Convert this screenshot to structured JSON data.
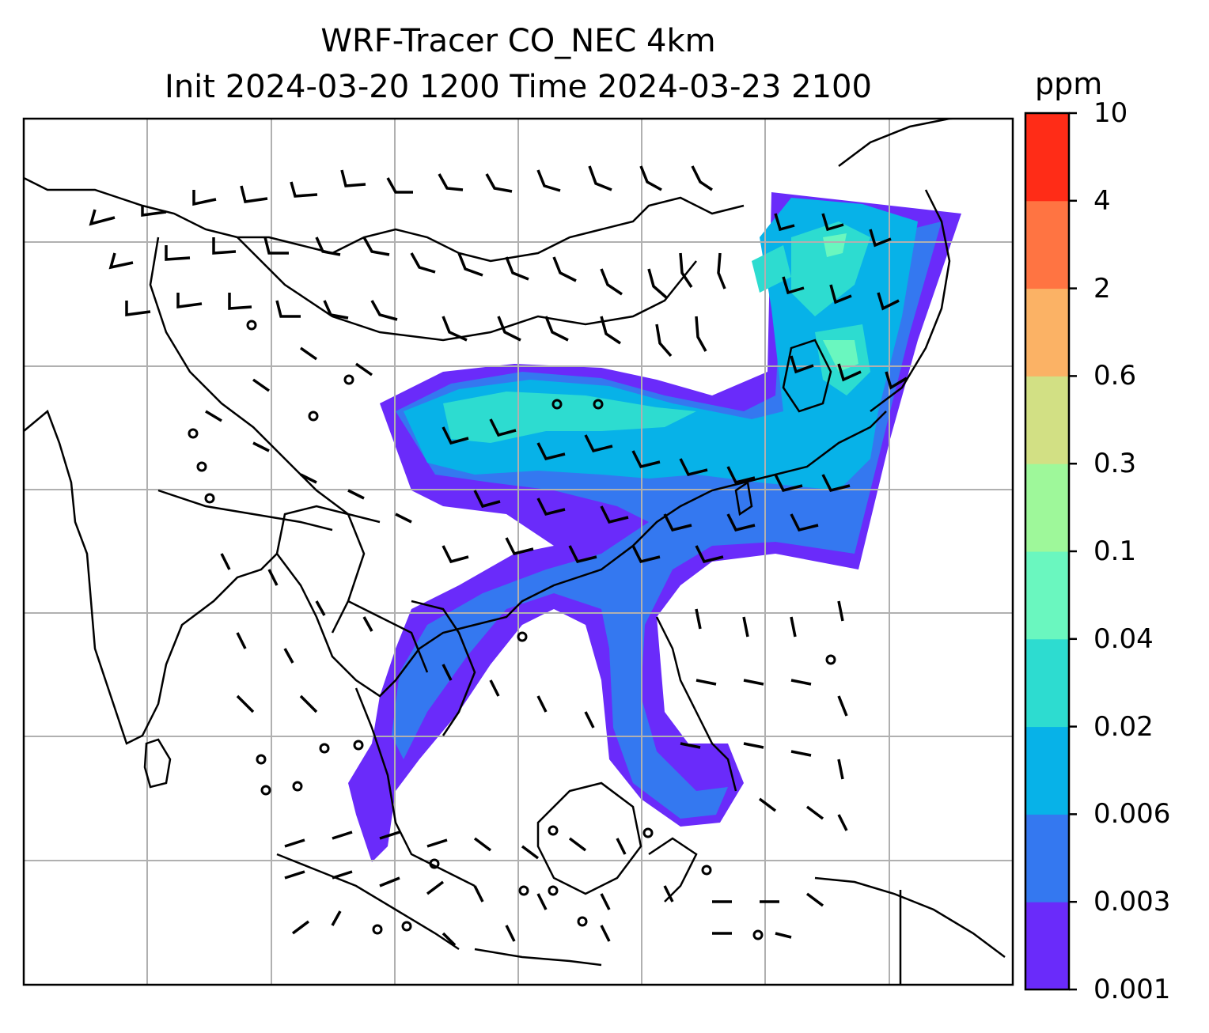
{
  "title": {
    "line1": "WRF-Tracer CO_NEC 4km",
    "line2": "Init 2024-03-20 1200 Time 2024-03-23 2100"
  },
  "colorbar": {
    "unit": "ppm",
    "levels": [
      "0.001",
      "0.003",
      "0.006",
      "0.02",
      "0.04",
      "0.1",
      "0.3",
      "0.6",
      "2",
      "4",
      "10"
    ],
    "colors": [
      "#6a2bfa",
      "#3478f0",
      "#07b2e8",
      "#2ddcd0",
      "#6af7bf",
      "#9ef89a",
      "#d2e084",
      "#fbb265",
      "#ff7442",
      "#ff2c17"
    ]
  },
  "map": {
    "grid": true,
    "gridline_color": "#b0b0b0",
    "coastline_color": "#000000",
    "overlay": "wind barbs"
  }
}
